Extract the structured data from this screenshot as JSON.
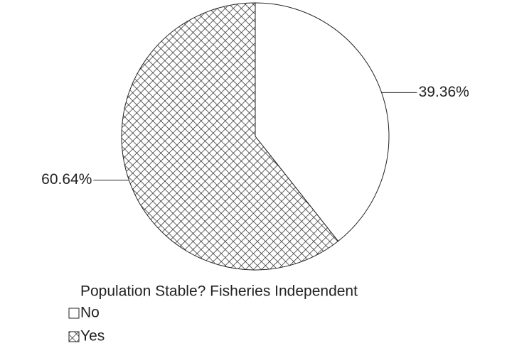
{
  "chart_data": {
    "type": "pie",
    "categories": [
      "No",
      "Yes"
    ],
    "values": [
      39.36,
      60.64
    ],
    "value_labels": [
      "39.36%",
      "60.64%"
    ],
    "fills": [
      "#ffffff",
      "crosshatch"
    ],
    "legend_title": "Population Stable? Fisheries Independent"
  }
}
